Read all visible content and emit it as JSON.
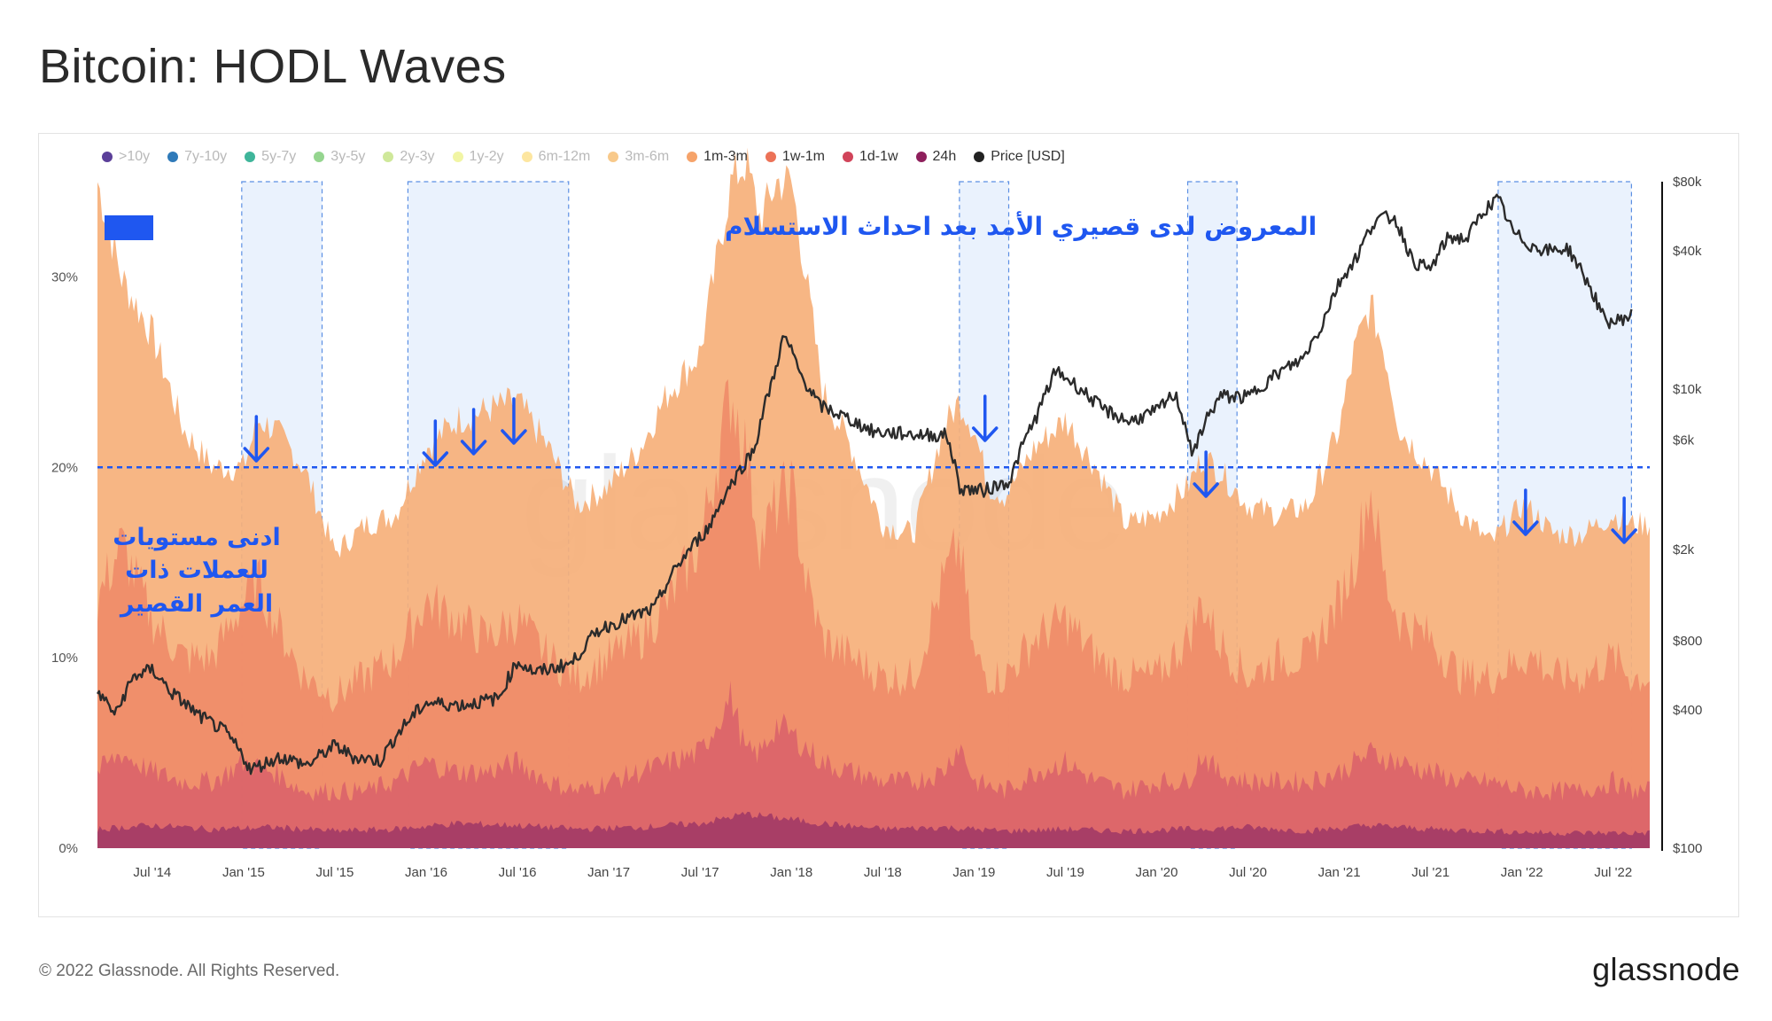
{
  "header": {
    "title": "Bitcoin: HODL Waves"
  },
  "footer": {
    "copyright": "© 2022 Glassnode. All Rights Reserved.",
    "logo_text": "glassnode"
  },
  "watermark": "glassnode",
  "colors": {
    "highlight_band": "#eaf2fd",
    "highlight_border": "#5b8fe3",
    "annotation_blue": "#1f57f0",
    "price_line": "#2b2b2b"
  },
  "legend": [
    {
      "label": ">10y",
      "color": "#5b3f99",
      "active": false
    },
    {
      "label": "7y-10y",
      "color": "#2f7ab9",
      "active": false
    },
    {
      "label": "5y-7y",
      "color": "#3fb59a",
      "active": false
    },
    {
      "label": "3y-5y",
      "color": "#95d58f",
      "active": false
    },
    {
      "label": "2y-3y",
      "color": "#cfe89a",
      "active": false
    },
    {
      "label": "1y-2y",
      "color": "#f1f5a4",
      "active": false
    },
    {
      "label": "6m-12m",
      "color": "#fde6a0",
      "active": false
    },
    {
      "label": "3m-6m",
      "color": "#f8c98a",
      "active": false
    },
    {
      "label": "1m-3m",
      "color": "#f6a36a",
      "active": true
    },
    {
      "label": "1w-1m",
      "color": "#ec7257",
      "active": true
    },
    {
      "label": "1d-1w",
      "color": "#d1445a",
      "active": true
    },
    {
      "label": "24h",
      "color": "#8e1f5c",
      "active": true
    },
    {
      "label": "Price [USD]",
      "color": "#222222",
      "active": true
    }
  ],
  "annotations": {
    "top_note": "المعروض لدى قصيري الأمد بعد احداث الاستسلام",
    "left_note_lines": [
      "ادنى مستويات",
      "للعملات ذات",
      "العمر القصير"
    ]
  },
  "chart_data": {
    "type": "area",
    "title": "Bitcoin: HODL Waves",
    "x_tick_labels": [
      "Jul '14",
      "Jan '15",
      "Jul '15",
      "Jan '16",
      "Jul '16",
      "Jan '17",
      "Jul '17",
      "Jan '18",
      "Jul '18",
      "Jan '19",
      "Jul '19",
      "Jan '20",
      "Jul '20",
      "Jan '21",
      "Jul '21",
      "Jan '22",
      "Jul '22"
    ],
    "y_left_tick_labels": [
      "0%",
      "10%",
      "20%",
      "30%"
    ],
    "y_left_range": [
      0,
      35
    ],
    "y_right_tick_labels": [
      "$100",
      "$400",
      "$800",
      "$2k",
      "$6k",
      "$10k",
      "$40k",
      "$80k"
    ],
    "y_right_ticks": [
      100,
      400,
      800,
      2000,
      6000,
      10000,
      40000,
      80000
    ],
    "y_right_scale": "log",
    "y_right_range": [
      100,
      80000
    ],
    "x_range": [
      2014.2,
      2022.7
    ],
    "reference_line": {
      "value": 20,
      "axis": "left",
      "style": "dashed"
    },
    "highlight_ranges": [
      [
        2014.99,
        2015.43
      ],
      [
        2015.9,
        2016.78
      ],
      [
        2018.92,
        2019.19
      ],
      [
        2020.17,
        2020.44
      ],
      [
        2021.87,
        2022.6
      ]
    ],
    "arrow_markers": [
      2015.07,
      2016.05,
      2016.26,
      2016.48,
      2019.06,
      2020.27,
      2022.02,
      2022.56
    ],
    "series": [
      {
        "name": "1m-3m",
        "color": "#f6b07a",
        "unit": "%",
        "x": [
          2014.2,
          2014.33,
          2014.5,
          2014.67,
          2014.83,
          2015.0,
          2015.08,
          2015.17,
          2015.33,
          2015.5,
          2015.67,
          2015.83,
          2016.0,
          2016.17,
          2016.33,
          2016.5,
          2016.67,
          2016.83,
          2017.0,
          2017.17,
          2017.33,
          2017.5,
          2017.67,
          2017.75,
          2017.83,
          2017.92,
          2018.0,
          2018.08,
          2018.17,
          2018.33,
          2018.5,
          2018.67,
          2018.83,
          2018.92,
          2019.0,
          2019.08,
          2019.17,
          2019.33,
          2019.5,
          2019.67,
          2019.83,
          2020.0,
          2020.17,
          2020.25,
          2020.33,
          2020.5,
          2020.67,
          2020.83,
          2021.0,
          2021.08,
          2021.17,
          2021.25,
          2021.33,
          2021.5,
          2021.67,
          2021.83,
          2022.0,
          2022.08,
          2022.17,
          2022.33,
          2022.5,
          2022.6
        ],
        "values": [
          35,
          30,
          27,
          22,
          20,
          20,
          22.5,
          22,
          20,
          15.5,
          17,
          17.5,
          21,
          22.5,
          23,
          23.5,
          21,
          18,
          19,
          21,
          24,
          26,
          35,
          36,
          33,
          35,
          35,
          30,
          24,
          21,
          17,
          16.5,
          22,
          23.5,
          22,
          19,
          18.5,
          21,
          22.5,
          20,
          17,
          17.5,
          19,
          20.5,
          20,
          18,
          17.5,
          18,
          22,
          26,
          28.5,
          26,
          22,
          20,
          17.5,
          16,
          18,
          17.5,
          16.5,
          16.5,
          17.5,
          17
        ]
      },
      {
        "name": "1w-1m",
        "color": "#ef8a68",
        "unit": "%",
        "x": [
          2014.2,
          2014.33,
          2014.5,
          2014.67,
          2014.83,
          2015.0,
          2015.08,
          2015.17,
          2015.33,
          2015.5,
          2015.67,
          2015.83,
          2016.0,
          2016.17,
          2016.33,
          2016.5,
          2016.67,
          2016.83,
          2017.0,
          2017.17,
          2017.33,
          2017.5,
          2017.67,
          2017.75,
          2017.83,
          2017.92,
          2018.0,
          2018.08,
          2018.17,
          2018.33,
          2018.5,
          2018.67,
          2018.83,
          2018.92,
          2019.0,
          2019.08,
          2019.17,
          2019.33,
          2019.5,
          2019.67,
          2019.83,
          2020.0,
          2020.17,
          2020.25,
          2020.33,
          2020.5,
          2020.67,
          2020.83,
          2021.0,
          2021.08,
          2021.17,
          2021.25,
          2021.33,
          2021.5,
          2021.67,
          2021.83,
          2022.0,
          2022.08,
          2022.17,
          2022.33,
          2022.5,
          2022.6
        ],
        "values": [
          13,
          16,
          12,
          10,
          10,
          13,
          14,
          12,
          9,
          8,
          9,
          10,
          13,
          12,
          11,
          12,
          10,
          9,
          10,
          11,
          13,
          16,
          24,
          21,
          16,
          18,
          19,
          14,
          11,
          10,
          9,
          9,
          14,
          16,
          10,
          9,
          9,
          11,
          12,
          10,
          9,
          9,
          11,
          13,
          11,
          9,
          10,
          10,
          13,
          15,
          19,
          14,
          12,
          11,
          9,
          9,
          10,
          10,
          9,
          9,
          10,
          9
        ]
      },
      {
        "name": "1d-1w",
        "color": "#d85e6a",
        "unit": "%",
        "x": [
          2014.2,
          2014.33,
          2014.5,
          2014.67,
          2014.83,
          2015.0,
          2015.17,
          2015.33,
          2015.5,
          2015.67,
          2015.83,
          2016.0,
          2016.17,
          2016.33,
          2016.5,
          2016.67,
          2016.83,
          2017.0,
          2017.17,
          2017.33,
          2017.5,
          2017.67,
          2017.75,
          2017.83,
          2017.92,
          2018.0,
          2018.17,
          2018.33,
          2018.5,
          2018.67,
          2018.83,
          2018.92,
          2019.0,
          2019.17,
          2019.33,
          2019.5,
          2019.67,
          2019.83,
          2020.0,
          2020.17,
          2020.25,
          2020.33,
          2020.5,
          2020.67,
          2020.83,
          2021.0,
          2021.17,
          2021.33,
          2021.5,
          2021.67,
          2021.83,
          2022.0,
          2022.17,
          2022.33,
          2022.5,
          2022.6
        ],
        "values": [
          4,
          5,
          4,
          3.5,
          3.5,
          4.5,
          4,
          3,
          3,
          3,
          3.5,
          4.5,
          4,
          4,
          4.5,
          3.5,
          3,
          3.5,
          4,
          4.5,
          5,
          8,
          5,
          5,
          6.5,
          6,
          4.5,
          4,
          3.5,
          3.5,
          4,
          5.5,
          3.5,
          3,
          4,
          4.5,
          3.5,
          3,
          3.5,
          3.5,
          5,
          4,
          3.5,
          3.5,
          3.5,
          4,
          5,
          4.5,
          4,
          3.5,
          3.5,
          3,
          3,
          3,
          3.5,
          3
        ]
      },
      {
        "name": "24h",
        "color": "#a23a66",
        "unit": "%",
        "x": [
          2014.2,
          2014.5,
          2014.83,
          2015.17,
          2015.5,
          2015.83,
          2016.17,
          2016.5,
          2016.83,
          2017.17,
          2017.5,
          2017.75,
          2017.92,
          2018.17,
          2018.5,
          2018.83,
          2019.17,
          2019.5,
          2019.83,
          2020.17,
          2020.5,
          2020.83,
          2021.17,
          2021.5,
          2021.83,
          2022.17,
          2022.6
        ],
        "values": [
          1,
          1.2,
          1,
          1.1,
          0.9,
          1,
          1.3,
          1.2,
          1,
          1.1,
          1.3,
          1.8,
          1.6,
          1.3,
          1,
          1.1,
          0.9,
          1,
          0.9,
          1,
          1.1,
          0.9,
          1.2,
          1,
          0.9,
          0.8,
          0.8
        ]
      },
      {
        "name": "Price [USD]",
        "color": "#2b2b2b",
        "unit": "USD",
        "axis": "right",
        "x": [
          2014.2,
          2014.3,
          2014.4,
          2014.5,
          2014.6,
          2014.75,
          2014.9,
          2015.04,
          2015.2,
          2015.35,
          2015.5,
          2015.6,
          2015.75,
          2015.85,
          2016.0,
          2016.2,
          2016.4,
          2016.5,
          2016.6,
          2016.8,
          2016.95,
          2017.1,
          2017.25,
          2017.4,
          2017.55,
          2017.7,
          2017.8,
          2017.9,
          2017.96,
          2018.05,
          2018.15,
          2018.3,
          2018.45,
          2018.6,
          2018.75,
          2018.85,
          2018.92,
          2019.05,
          2019.2,
          2019.35,
          2019.45,
          2019.55,
          2019.7,
          2019.85,
          2020.0,
          2020.1,
          2020.2,
          2020.25,
          2020.35,
          2020.5,
          2020.65,
          2020.8,
          2020.9,
          2021.0,
          2021.1,
          2021.2,
          2021.3,
          2021.4,
          2021.5,
          2021.6,
          2021.7,
          2021.8,
          2021.87,
          2021.95,
          2022.05,
          2022.15,
          2022.25,
          2022.35,
          2022.45,
          2022.5,
          2022.6
        ],
        "values": [
          480,
          380,
          560,
          600,
          480,
          380,
          320,
          220,
          250,
          230,
          280,
          250,
          240,
          320,
          430,
          420,
          450,
          650,
          580,
          640,
          900,
          1000,
          1100,
          1800,
          2500,
          4200,
          5500,
          11000,
          17000,
          11500,
          8500,
          7500,
          6500,
          6400,
          6300,
          6300,
          3700,
          3600,
          4000,
          7800,
          12000,
          10500,
          8200,
          7200,
          8000,
          9500,
          5000,
          6800,
          9300,
          9200,
          11500,
          13500,
          18500,
          29000,
          38000,
          55000,
          56000,
          36000,
          33000,
          46000,
          45000,
          61000,
          67000,
          48000,
          42000,
          40000,
          41000,
          30000,
          20000,
          19500,
          21000
        ]
      }
    ]
  }
}
